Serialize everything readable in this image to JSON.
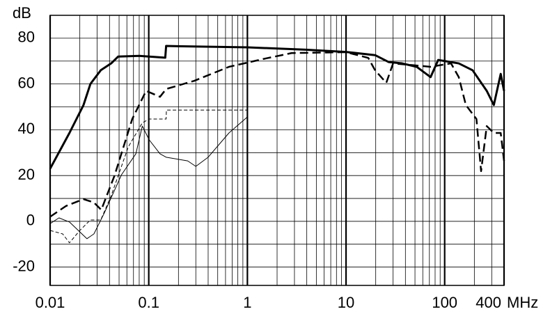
{
  "chart_data": {
    "type": "line",
    "y_unit": "dB",
    "x_unit": "MHz",
    "xlim": [
      0.01,
      400
    ],
    "ylim": [
      -28,
      90
    ],
    "xlog": true,
    "grid": true,
    "minor_grid": true,
    "xticks": [
      0.01,
      0.1,
      1,
      10,
      100,
      400
    ],
    "yticks": [
      -20,
      0,
      20,
      40,
      60,
      80
    ],
    "series": [
      {
        "color": "#000000",
        "width": 3,
        "dash": "none",
        "x": [
          0.01,
          0.0157,
          0.0218,
          0.0256,
          0.0326,
          0.0416,
          0.049,
          0.08,
          0.147,
          0.15,
          1,
          3.9,
          10,
          19.7,
          27,
          37,
          52,
          72,
          86,
          139,
          192,
          267,
          315,
          370,
          400
        ],
        "values": [
          23,
          38.6,
          50.8,
          60,
          66,
          69,
          72,
          72.3,
          71.5,
          76.6,
          76,
          75,
          74,
          72.6,
          69.6,
          69,
          67.5,
          63,
          70.5,
          69,
          66,
          57,
          50.8,
          64.4,
          57
        ]
      },
      {
        "color": "#000000",
        "width": 2.5,
        "dash": "12 6",
        "x": [
          0.01,
          0.0145,
          0.0218,
          0.0278,
          0.033,
          0.045,
          0.068,
          0.094,
          0.13,
          0.15,
          0.29,
          0.65,
          1.48,
          2.8,
          10,
          16.8,
          19.7,
          25.6,
          30,
          72,
          116,
          139,
          164,
          210,
          234,
          267,
          315,
          370,
          400
        ],
        "values": [
          2,
          6.7,
          9.7,
          8.2,
          5,
          20,
          44.7,
          57,
          54.4,
          57.8,
          61.4,
          67.5,
          71,
          73.5,
          73.9,
          71.4,
          66,
          60.5,
          69,
          67.5,
          69,
          63,
          50.8,
          44.7,
          21.9,
          41.6,
          38.6,
          38.6,
          26.4
        ]
      },
      {
        "color": "#000000",
        "width": 1,
        "dash": "none",
        "x": [
          0.01,
          0.0123,
          0.0157,
          0.0236,
          0.0278,
          0.0354,
          0.053,
          0.074,
          0.086,
          0.101,
          0.13,
          0.15,
          0.248,
          0.3,
          0.4,
          0.65,
          1
        ],
        "values": [
          -1,
          1.5,
          -0.3,
          -7.6,
          -5.5,
          3.6,
          20.4,
          29.5,
          41.6,
          35.6,
          29.5,
          28,
          26.4,
          24,
          28,
          38.6,
          45.6
        ]
      },
      {
        "color": "#000000",
        "width": 1,
        "dash": "5 3",
        "x": [
          0.01,
          0.0134,
          0.0157,
          0.02,
          0.0256,
          0.0326,
          0.0416,
          0.062,
          0.086,
          0.101,
          0.15,
          0.151,
          1
        ],
        "values": [
          -4,
          -5.5,
          -9.4,
          -4,
          0.6,
          0.6,
          11.2,
          32.5,
          43,
          44.7,
          44.7,
          48.6,
          48.6
        ]
      }
    ]
  }
}
